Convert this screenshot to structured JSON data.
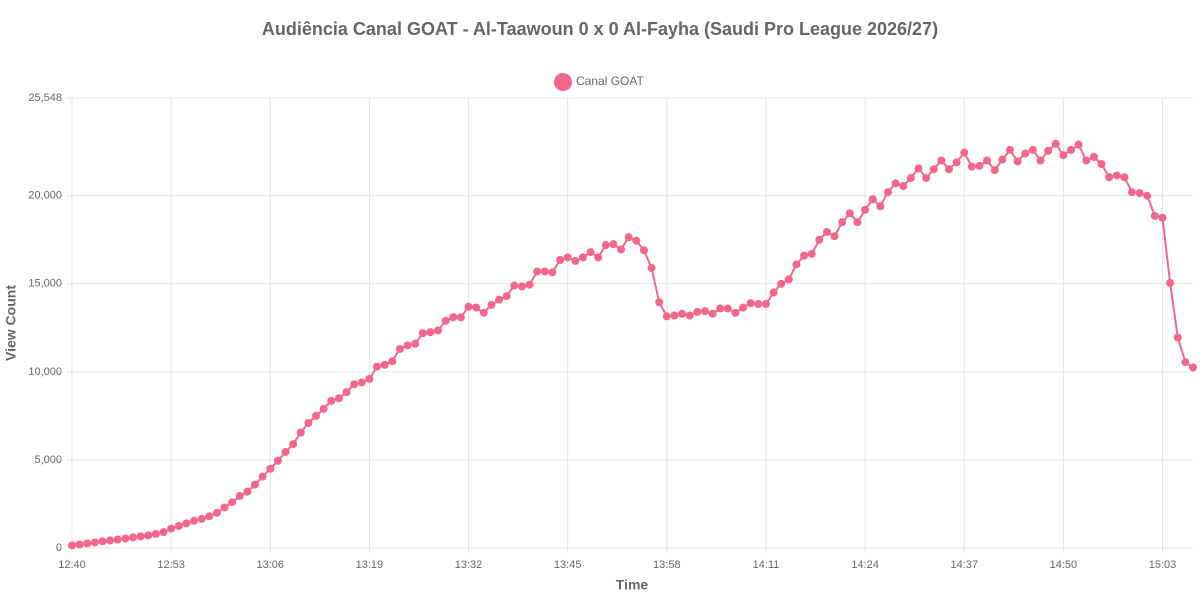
{
  "chart_data": {
    "type": "line",
    "title": "Audiência Canal GOAT - Al-Taawoun 0 x 0 Al-Fayha (Saudi Pro League 2026/27)",
    "x_label": "Time",
    "y_label": "View Count",
    "categories": [
      "12:40",
      null,
      null,
      null,
      null,
      null,
      null,
      null,
      null,
      null,
      null,
      null,
      null,
      "12:53",
      null,
      null,
      null,
      null,
      null,
      null,
      null,
      null,
      null,
      null,
      null,
      null,
      "13:06",
      null,
      null,
      null,
      null,
      null,
      null,
      null,
      null,
      null,
      null,
      null,
      null,
      "13:19",
      null,
      null,
      null,
      null,
      null,
      null,
      null,
      null,
      null,
      null,
      null,
      null,
      "13:32",
      null,
      null,
      null,
      null,
      null,
      null,
      null,
      null,
      null,
      null,
      null,
      null,
      "13:45",
      null,
      null,
      null,
      null,
      null,
      null,
      null,
      null,
      null,
      null,
      null,
      null,
      "13:58",
      null,
      null,
      null,
      null,
      null,
      null,
      null,
      null,
      null,
      null,
      null,
      null,
      "14:11",
      null,
      null,
      null,
      null,
      null,
      null,
      null,
      null,
      null,
      null,
      null,
      null,
      "14:24",
      null,
      null,
      null,
      null,
      null,
      null,
      null,
      null,
      null,
      null,
      null,
      null,
      "14:37",
      null,
      null,
      null,
      null,
      null,
      null,
      null,
      null,
      null,
      null,
      null,
      null,
      "14:50",
      null,
      null,
      null,
      null,
      null,
      null,
      null,
      null,
      null,
      null,
      null,
      null,
      "15:03",
      null,
      null,
      null,
      null
    ],
    "series": [
      {
        "name": "Canal GOAT",
        "color": "#f4668c",
        "values": [
          150,
          200,
          260,
          320,
          380,
          430,
          480,
          540,
          600,
          660,
          720,
          800,
          900,
          1100,
          1250,
          1400,
          1550,
          1650,
          1800,
          2000,
          2300,
          2600,
          2950,
          3200,
          3600,
          4050,
          4500,
          4950,
          5450,
          5900,
          6550,
          7100,
          7500,
          7900,
          8350,
          8500,
          8850,
          9300,
          9400,
          9600,
          10300,
          10400,
          10600,
          11300,
          11500,
          11600,
          12200,
          12250,
          12350,
          12900,
          13100,
          13100,
          13700,
          13650,
          13350,
          13800,
          14100,
          14300,
          14900,
          14850,
          14950,
          15700,
          15700,
          15650,
          16350,
          16500,
          16300,
          16500,
          16800,
          16500,
          17200,
          17250,
          16950,
          17650,
          17450,
          16900,
          15900,
          13950,
          13150,
          13200,
          13300,
          13200,
          13400,
          13450,
          13300,
          13600,
          13600,
          13350,
          13650,
          13900,
          13850,
          13850,
          14500,
          15000,
          15250,
          16100,
          16600,
          16700,
          17500,
          17950,
          17700,
          18500,
          19000,
          18500,
          19200,
          19800,
          19400,
          20200,
          20700,
          20550,
          21000,
          21550,
          21000,
          21500,
          22000,
          21500,
          21900,
          22450,
          21650,
          21700,
          22000,
          21450,
          22050,
          22600,
          21950,
          22400,
          22600,
          22000,
          22550,
          22950,
          22300,
          22600,
          22900,
          22000,
          22200,
          21800,
          21050,
          21150,
          21050,
          20200,
          20150,
          20000,
          18850,
          18750,
          15050,
          11950,
          10550,
          10250
        ]
      }
    ],
    "ylim": [
      0,
      25548
    ],
    "yticks": [
      0,
      {
        "value": 5000,
        "label": "5,000"
      },
      {
        "value": 10000,
        "label": "10,000"
      },
      {
        "value": 15000,
        "label": "15,000"
      },
      {
        "value": 20000,
        "label": "20,000"
      },
      {
        "value": 25548,
        "label": "25,548"
      }
    ],
    "grid": true,
    "legend": "top"
  }
}
